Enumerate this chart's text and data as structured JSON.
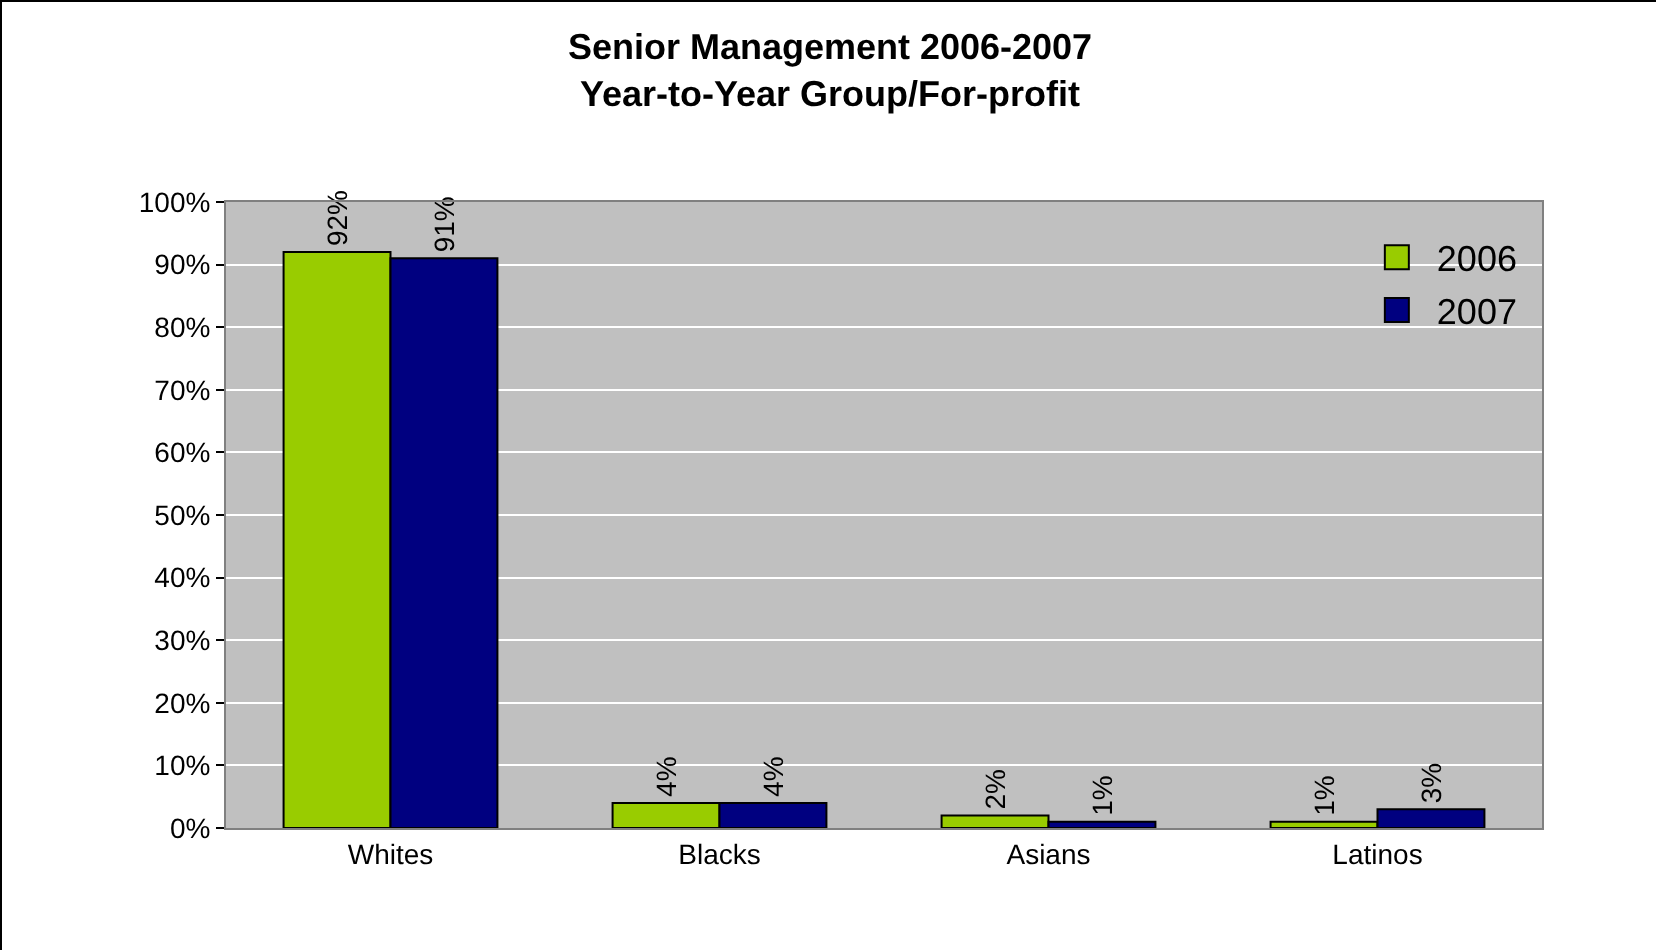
{
  "chart_data": {
    "type": "bar",
    "title": "Senior Management 2006-2007",
    "subtitle": "Year-to-Year Group/For-profit",
    "categories": [
      "Whites",
      "Blacks",
      "Asians",
      "Latinos"
    ],
    "series": [
      {
        "name": "2006",
        "color": "#99cc00",
        "values": [
          92,
          4,
          2,
          1
        ],
        "value_labels": [
          "92%",
          "4%",
          "2%",
          "1%"
        ]
      },
      {
        "name": "2007",
        "color": "#000080",
        "values": [
          91,
          4,
          1,
          3
        ],
        "value_labels": [
          "91%",
          "4%",
          "1%",
          "3%"
        ]
      }
    ],
    "ylim": [
      0,
      100
    ],
    "yticks": [
      {
        "value": 0,
        "label": "0%"
      },
      {
        "value": 10,
        "label": "10%"
      },
      {
        "value": 20,
        "label": "20%"
      },
      {
        "value": 30,
        "label": "30%"
      },
      {
        "value": 40,
        "label": "40%"
      },
      {
        "value": 50,
        "label": "50%"
      },
      {
        "value": 60,
        "label": "60%"
      },
      {
        "value": 70,
        "label": "70%"
      },
      {
        "value": 80,
        "label": "80%"
      },
      {
        "value": 90,
        "label": "90%"
      },
      {
        "value": 100,
        "label": "100%"
      }
    ],
    "grid": "y",
    "legend": "top right"
  }
}
